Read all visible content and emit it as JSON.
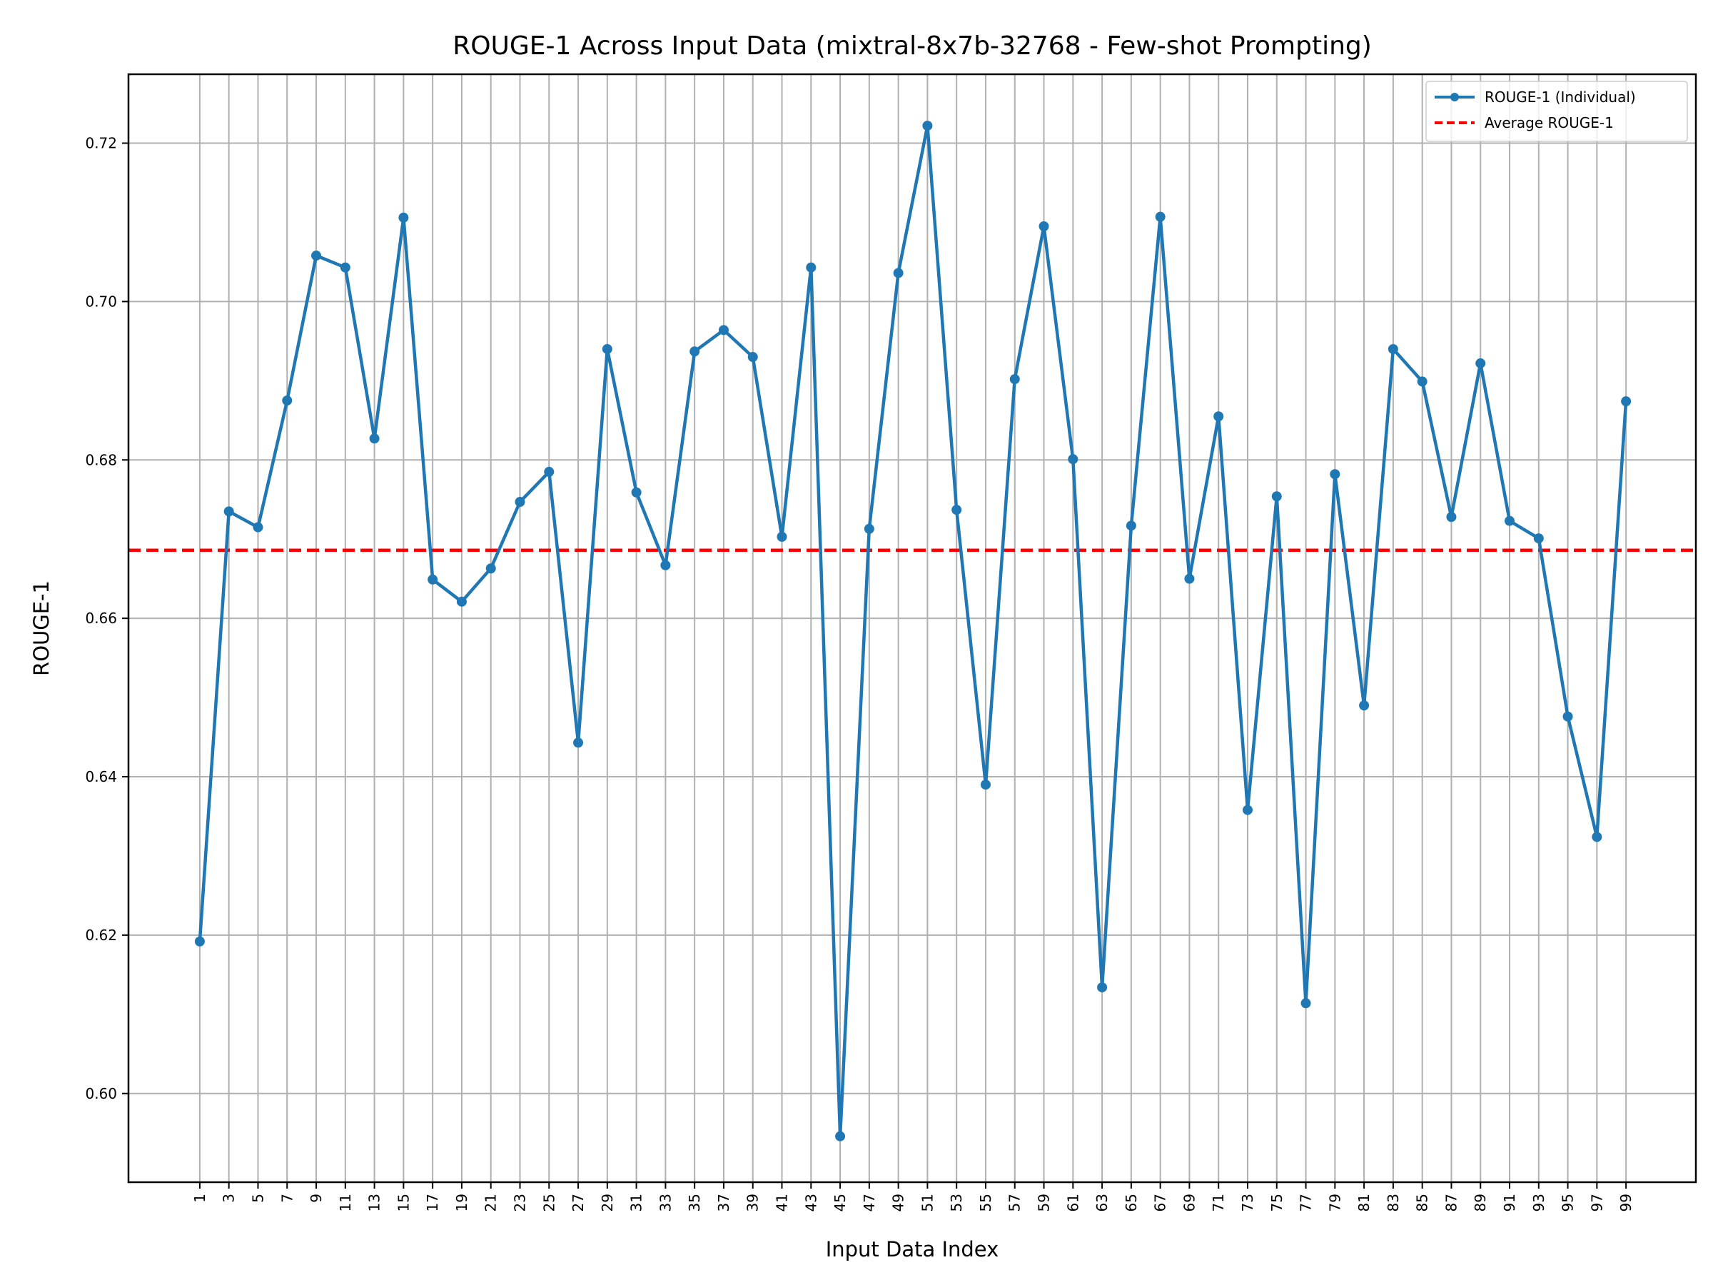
{
  "chart_data": {
    "type": "line",
    "title": "ROUGE-1 Across Input Data (mixtral-8x7b-32768 - Few-shot Prompting)",
    "xlabel": "Input Data Index",
    "ylabel": "ROUGE-1",
    "x": [
      1,
      3,
      5,
      7,
      9,
      11,
      13,
      15,
      17,
      19,
      21,
      23,
      25,
      27,
      29,
      31,
      33,
      35,
      37,
      39,
      41,
      43,
      45,
      47,
      49,
      51,
      53,
      55,
      57,
      59,
      61,
      63,
      65,
      67,
      69,
      71,
      73,
      75,
      77,
      79,
      81,
      83,
      85,
      87,
      89,
      91,
      93,
      95,
      97,
      99
    ],
    "x_ticks": [
      "1",
      "3",
      "5",
      "7",
      "9",
      "11",
      "13",
      "15",
      "17",
      "19",
      "21",
      "23",
      "25",
      "27",
      "29",
      "31",
      "33",
      "35",
      "37",
      "39",
      "41",
      "43",
      "45",
      "47",
      "49",
      "51",
      "53",
      "55",
      "57",
      "59",
      "61",
      "63",
      "65",
      "67",
      "69",
      "71",
      "73",
      "75",
      "77",
      "79",
      "81",
      "83",
      "85",
      "87",
      "89",
      "91",
      "93",
      "95",
      "97",
      "99"
    ],
    "xlim": [
      -3.9,
      103.8
    ],
    "ylim": [
      0.5888,
      0.7287
    ],
    "y_ticks": [
      0.6,
      0.62,
      0.64,
      0.66,
      0.68,
      0.7,
      0.72
    ],
    "y_tick_labels": [
      "0.60",
      "0.62",
      "0.64",
      "0.66",
      "0.68",
      "0.70",
      "0.72"
    ],
    "grid": true,
    "legend_position": "top-right",
    "series": [
      {
        "name": "ROUGE-1 (Individual)",
        "color": "#1f77b4",
        "values": [
          0.6192,
          0.6735,
          0.6715,
          0.6875,
          0.7058,
          0.7043,
          0.6827,
          0.7106,
          0.6649,
          0.6621,
          0.6663,
          0.6747,
          0.6785,
          0.6443,
          0.694,
          0.6759,
          0.6667,
          0.6937,
          0.6964,
          0.693,
          0.6703,
          0.7043,
          0.5946,
          0.6713,
          0.7036,
          0.7222,
          0.6737,
          0.639,
          0.6902,
          0.7095,
          0.6801,
          0.6134,
          0.6717,
          0.7107,
          0.665,
          0.6855,
          0.6358,
          0.6754,
          0.6114,
          0.6782,
          0.649,
          0.694,
          0.6899,
          0.6728,
          0.6922,
          0.6723,
          0.6701,
          0.6476,
          0.6324,
          0.6874
        ]
      }
    ],
    "average": {
      "name": "Average ROUGE-1",
      "color": "#ff0000",
      "value": 0.6686
    }
  }
}
